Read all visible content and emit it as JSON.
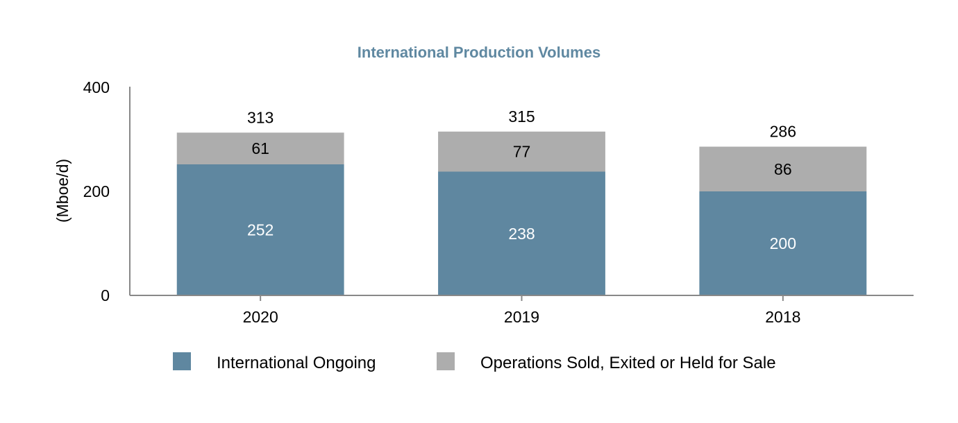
{
  "chart_data": {
    "type": "bar",
    "stacked": true,
    "title": "International Production Volumes",
    "ylabel": "(Mboe/d)",
    "xlabel": "",
    "ylim": [
      0,
      400
    ],
    "yticks": [
      "0",
      "200",
      "400"
    ],
    "categories": [
      "2020",
      "2019",
      "2018"
    ],
    "series": [
      {
        "name": "International Ongoing",
        "values": [
          252,
          238,
          200
        ],
        "color": "#5f87a0",
        "label_color": "#ffffff"
      },
      {
        "name": "Operations Sold, Exited or Held for Sale",
        "values": [
          61,
          77,
          86
        ],
        "color": "#adadad",
        "label_color": "#000000"
      }
    ],
    "totals": [
      313,
      315,
      286
    ],
    "legend_position": "bottom",
    "grid": false
  }
}
